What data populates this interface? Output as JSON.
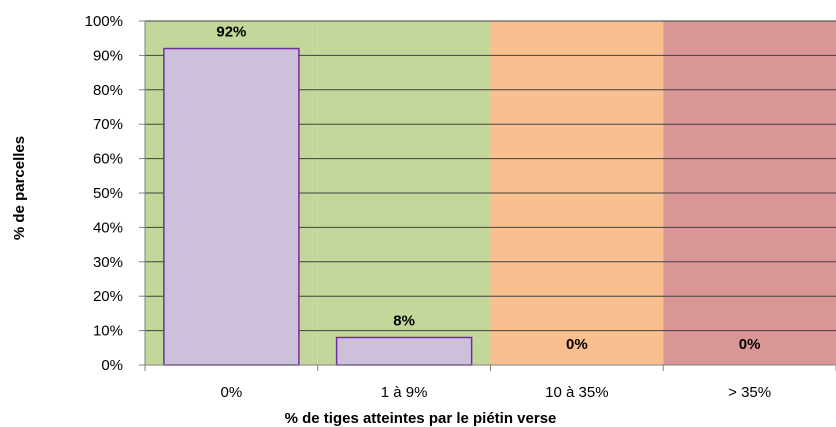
{
  "chart_data": {
    "type": "bar",
    "categories": [
      "0%",
      "1 à 9%",
      "10 à 35%",
      "> 35%"
    ],
    "values": [
      92,
      8,
      0,
      0
    ],
    "data_labels": [
      "92%",
      "8%",
      "0%",
      "0%"
    ],
    "title": "",
    "xlabel": "% de tiges atteintes par le piétin verse",
    "ylabel": "% de parcelles",
    "ylim": [
      0,
      100
    ],
    "y_ticks": [
      "0%",
      "10%",
      "20%",
      "30%",
      "40%",
      "50%",
      "60%",
      "70%",
      "80%",
      "90%",
      "100%"
    ],
    "grid": true,
    "legend": "none",
    "category_band_colors": [
      "#c4d79b",
      "#c4d79b",
      "#f9bf8f",
      "#da9694"
    ],
    "bar_fill": "#ccc0da",
    "bar_stroke": "#7030a0",
    "axis_color": "#808080",
    "grid_color": "#404040"
  }
}
